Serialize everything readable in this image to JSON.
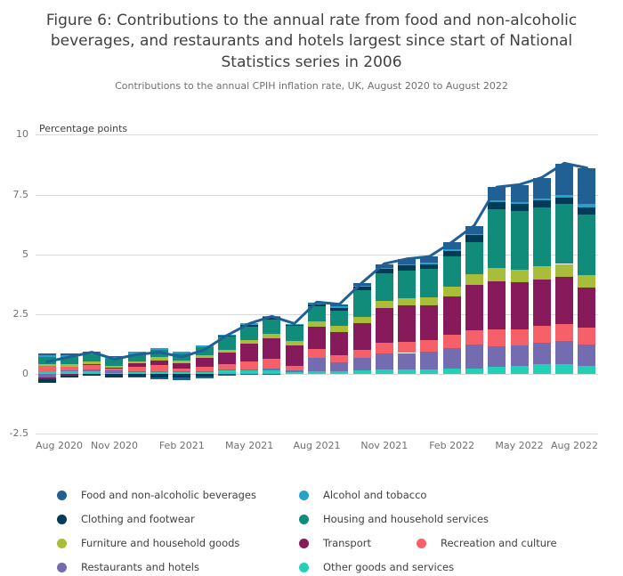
{
  "page": {
    "title": "Figure 6: Contributions to the annual rate from food and non-alcoholic beverages, and restaurants and hotels largest since start of National Statistics series in 2006",
    "subtitle": "Contributions to the annual CPIH inflation rate, UK, August 2020 to August 2022"
  },
  "chart_data": {
    "type": "bar",
    "stacked": true,
    "title": "Figure 6: Contributions to the annual rate from food and non-alcoholic beverages, and restaurants and hotels largest since start of National Statistics series in 2006",
    "subtitle": "Contributions to the annual CPIH inflation rate, UK, August 2020 to August 2022",
    "ylabel": "Percentage points",
    "ylim": [
      -2.5,
      10
    ],
    "yticks": [
      10,
      7.5,
      5,
      2.5,
      0,
      -2.5
    ],
    "ytick_labels": [
      "10",
      "7.5",
      "5",
      "2.5",
      "0",
      "-2.5"
    ],
    "grid": true,
    "legend_position": "bottom",
    "line_color": "#206095",
    "x": [
      "Aug 2020",
      "Sep 2020",
      "Oct 2020",
      "Nov 2020",
      "Dec 2020",
      "Jan 2021",
      "Feb 2021",
      "Mar 2021",
      "Apr 2021",
      "May 2021",
      "Jun 2021",
      "Jul 2021",
      "Aug 2021",
      "Sep 2021",
      "Oct 2021",
      "Nov 2021",
      "Dec 2021",
      "Jan 2022",
      "Feb 2022",
      "Mar 2022",
      "Apr 2022",
      "May 2022",
      "Jun 2022",
      "Jul 2022",
      "Aug 2022"
    ],
    "xticks": [
      "Aug 2020",
      "Nov 2020",
      "Feb 2021",
      "May 2021",
      "Aug 2021",
      "Nov 2021",
      "Feb 2022",
      "May 2022",
      "Aug 2022"
    ],
    "series": [
      {
        "name": "Food and non-alcoholic beverages",
        "color": "#206095",
        "values": [
          0.05,
          0.05,
          0.05,
          0.03,
          -0.02,
          -0.05,
          -0.1,
          -0.08,
          -0.05,
          -0.02,
          -0.02,
          0.0,
          0.03,
          0.08,
          0.1,
          0.15,
          0.2,
          0.25,
          0.3,
          0.35,
          0.55,
          0.7,
          0.85,
          1.3,
          1.5
        ]
      },
      {
        "name": "Alcohol and tobacco",
        "color": "#27a0cc",
        "values": [
          0.08,
          0.08,
          0.08,
          0.08,
          0.08,
          0.08,
          0.08,
          0.07,
          0.06,
          0.05,
          0.05,
          0.05,
          0.05,
          0.05,
          0.05,
          0.05,
          0.05,
          0.05,
          0.05,
          0.05,
          0.06,
          0.08,
          0.1,
          0.12,
          0.15
        ]
      },
      {
        "name": "Clothing and footwear",
        "color": "#003c57",
        "values": [
          -0.15,
          -0.1,
          -0.05,
          -0.15,
          -0.1,
          -0.15,
          -0.15,
          -0.1,
          0.02,
          0.08,
          0.1,
          0.05,
          0.1,
          0.12,
          0.15,
          0.2,
          0.22,
          0.2,
          0.25,
          0.28,
          0.3,
          0.3,
          0.3,
          0.28,
          0.3
        ]
      },
      {
        "name": "Housing and household services",
        "color": "#118c7b",
        "values": [
          0.3,
          0.3,
          0.3,
          0.3,
          0.3,
          0.32,
          0.3,
          0.32,
          0.55,
          0.58,
          0.6,
          0.6,
          0.62,
          0.65,
          1.1,
          1.15,
          1.15,
          1.18,
          1.25,
          1.35,
          2.45,
          2.45,
          2.45,
          2.5,
          2.5
        ]
      },
      {
        "name": "Furniture and household goods",
        "color": "#a8bd3a",
        "values": [
          0.08,
          0.1,
          0.1,
          0.08,
          0.1,
          0.12,
          0.12,
          0.12,
          0.12,
          0.15,
          0.18,
          0.2,
          0.22,
          0.25,
          0.28,
          0.3,
          0.32,
          0.35,
          0.4,
          0.45,
          0.58,
          0.55,
          0.55,
          0.55,
          0.55
        ]
      },
      {
        "name": "Transport",
        "color": "#871a5b",
        "values": [
          -0.05,
          -0.05,
          0.02,
          0.02,
          0.12,
          0.2,
          0.22,
          0.35,
          0.5,
          0.75,
          0.85,
          0.85,
          0.95,
          0.95,
          1.1,
          1.45,
          1.5,
          1.45,
          1.6,
          1.9,
          2.0,
          1.95,
          1.95,
          1.95,
          1.65
        ]
      },
      {
        "name": "Recreation and culture",
        "color": "#f66068",
        "values": [
          0.25,
          0.15,
          0.2,
          0.1,
          0.2,
          0.25,
          0.12,
          0.2,
          0.22,
          0.3,
          0.4,
          0.2,
          0.35,
          0.3,
          0.35,
          0.45,
          0.48,
          0.5,
          0.55,
          0.6,
          0.7,
          0.68,
          0.7,
          0.72,
          0.7
        ]
      },
      {
        "name": "Restaurants and hotels",
        "color": "#746cb1",
        "values": [
          -0.15,
          0.07,
          0.1,
          0.1,
          0.02,
          0.02,
          0.01,
          0.02,
          0.04,
          0.06,
          0.08,
          0.06,
          0.55,
          0.38,
          0.52,
          0.65,
          0.7,
          0.72,
          0.88,
          1.0,
          0.85,
          0.85,
          0.9,
          0.95,
          0.9
        ]
      },
      {
        "name": "Other goods and services",
        "color": "#22d0b6",
        "values": [
          0.09,
          0.1,
          0.1,
          0.05,
          0.1,
          0.11,
          0.1,
          0.1,
          0.14,
          0.15,
          0.16,
          0.09,
          0.13,
          0.12,
          0.15,
          0.2,
          0.18,
          0.2,
          0.22,
          0.22,
          0.31,
          0.34,
          0.4,
          0.43,
          0.35
        ]
      }
    ],
    "total_line": {
      "description": "sum of contributions (CPIH annual rate)",
      "values": [
        0.5,
        0.7,
        0.9,
        0.61,
        0.8,
        0.9,
        0.7,
        1.0,
        1.6,
        2.1,
        2.4,
        2.1,
        3.0,
        2.9,
        3.8,
        4.6,
        4.8,
        4.9,
        5.5,
        6.2,
        7.8,
        7.9,
        8.2,
        8.8,
        8.6
      ]
    }
  }
}
